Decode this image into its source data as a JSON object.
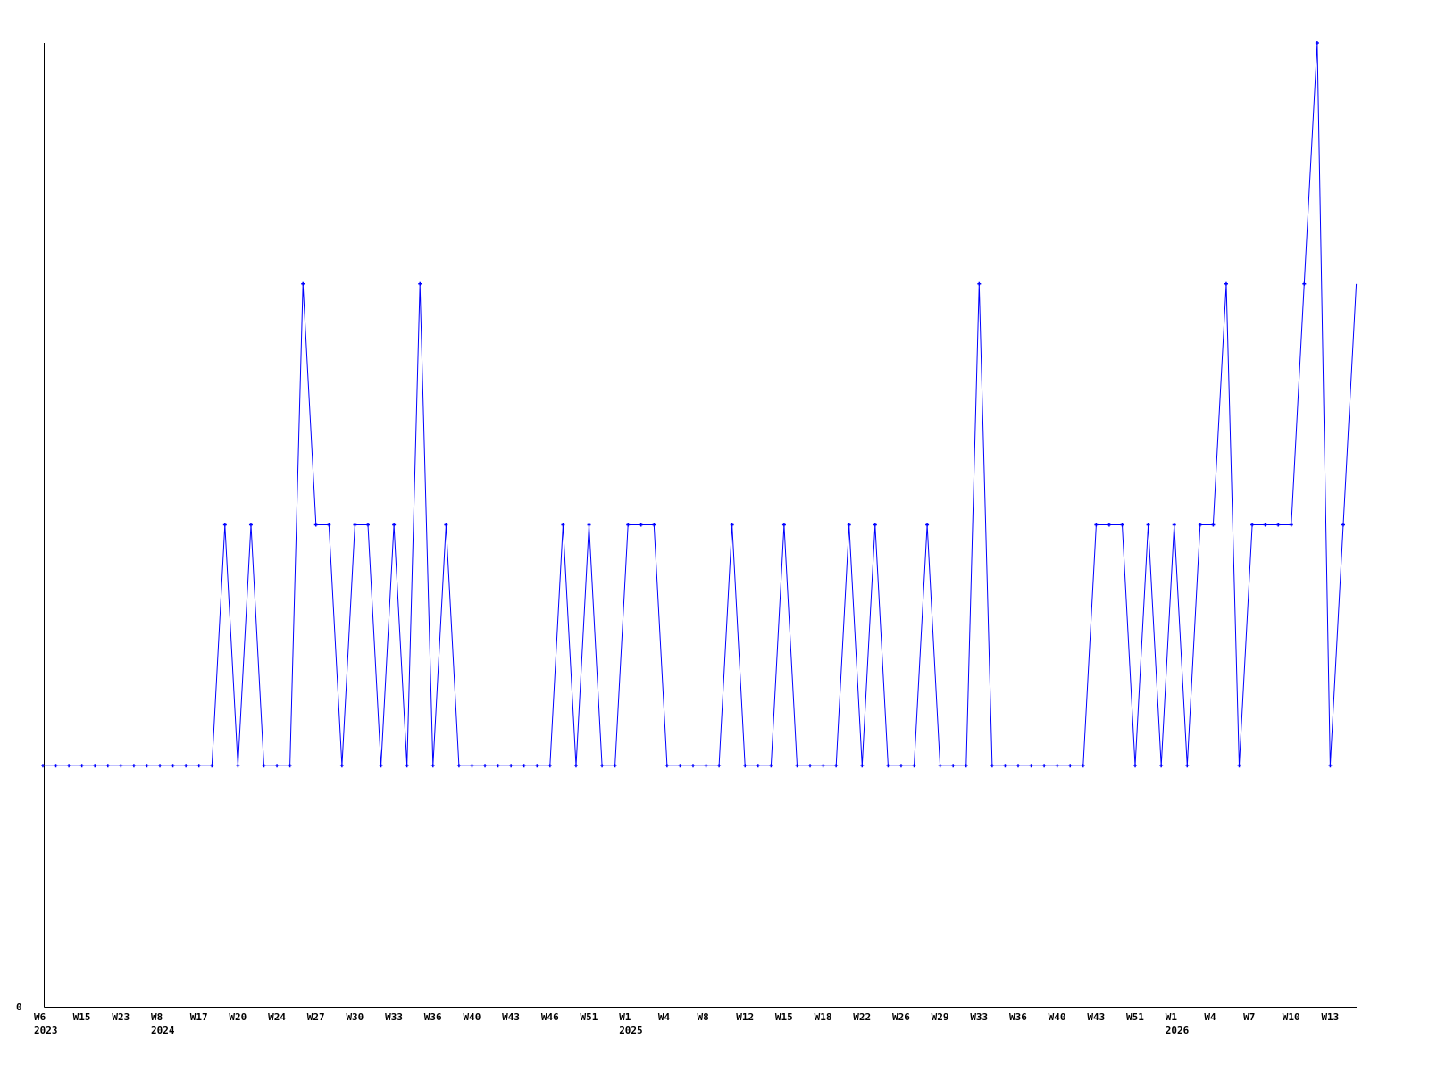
{
  "chart_data": {
    "type": "line",
    "title": "",
    "xlabel": "",
    "ylabel": "",
    "ylim": [
      0,
      4
    ],
    "y_tick_labels": [
      "0"
    ],
    "grid": false,
    "line_color": "#0000ff",
    "x_tick_labels": [
      "W6",
      "W15",
      "W23",
      "W8",
      "W17",
      "W20",
      "W24",
      "W27",
      "W30",
      "W33",
      "W36",
      "W40",
      "W43",
      "W46",
      "W51",
      "W1",
      "W4",
      "W8",
      "W12",
      "W15",
      "W18",
      "W22",
      "W26",
      "W29",
      "W33",
      "W36",
      "W40",
      "W43",
      "W51",
      "W1",
      "W4",
      "W7",
      "W10",
      "W13"
    ],
    "x_tick_every": 3,
    "year_labels": [
      {
        "tick_index": 0,
        "label": "2023"
      },
      {
        "tick_index": 3,
        "label": "2024"
      },
      {
        "tick_index": 15,
        "label": "2025"
      },
      {
        "tick_index": 29,
        "label": "2026"
      }
    ],
    "values": [
      1,
      1,
      1,
      1,
      1,
      1,
      1,
      1,
      1,
      1,
      1,
      1,
      1,
      1,
      2,
      1,
      2,
      1,
      1,
      1,
      3,
      2,
      2,
      1,
      2,
      2,
      1,
      2,
      1,
      3,
      1,
      2,
      1,
      1,
      1,
      1,
      1,
      1,
      1,
      1,
      2,
      1,
      2,
      1,
      1,
      2,
      2,
      2,
      1,
      1,
      1,
      1,
      1,
      2,
      1,
      1,
      1,
      2,
      1,
      1,
      1,
      1,
      2,
      1,
      2,
      1,
      1,
      1,
      2,
      1,
      1,
      1,
      3,
      1,
      1,
      1,
      1,
      1,
      1,
      1,
      1,
      2,
      2,
      2,
      1,
      2,
      1,
      2,
      1,
      2,
      2,
      3,
      1,
      2,
      2,
      2,
      2,
      3,
      4,
      1,
      2,
      3
    ]
  }
}
